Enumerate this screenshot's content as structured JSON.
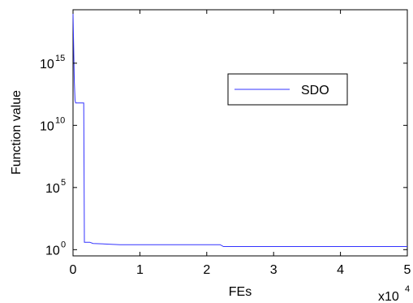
{
  "chart_data": {
    "type": "line",
    "title": "",
    "xlabel": "FEs",
    "ylabel": "Function value",
    "x_scale_label": {
      "base": "x10",
      "exponent": "4"
    },
    "xlim": [
      0,
      50000
    ],
    "ylim_log10": [
      -0.5,
      19.3
    ],
    "y_scale": "log",
    "grid": false,
    "legend": "center-right",
    "x_ticks": [
      {
        "value": 0,
        "label": "0"
      },
      {
        "value": 10000,
        "label": "1"
      },
      {
        "value": 20000,
        "label": "2"
      },
      {
        "value": 30000,
        "label": "3"
      },
      {
        "value": 40000,
        "label": "4"
      },
      {
        "value": 50000,
        "label": "5"
      }
    ],
    "y_ticks": [
      {
        "exp": 0,
        "base": "10",
        "sup": "0"
      },
      {
        "exp": 5,
        "base": "10",
        "sup": "5"
      },
      {
        "exp": 10,
        "base": "10",
        "sup": "10"
      },
      {
        "exp": 15,
        "base": "10",
        "sup": "15"
      }
    ],
    "series": [
      {
        "name": "SDO",
        "color": "#3333ff",
        "x": [
          0,
          200,
          300,
          400,
          600,
          800,
          1200,
          1600,
          1700,
          2500,
          3000,
          7000,
          22000,
          22500,
          50000
        ],
        "y_log10": [
          19.0,
          13.5,
          12.0,
          11.8,
          11.8,
          11.8,
          11.8,
          11.8,
          0.6,
          0.6,
          0.5,
          0.4,
          0.4,
          0.25,
          0.25
        ]
      }
    ],
    "colors": {
      "series": "#3333ff",
      "axes": "#000000",
      "background": "#ffffff"
    }
  }
}
